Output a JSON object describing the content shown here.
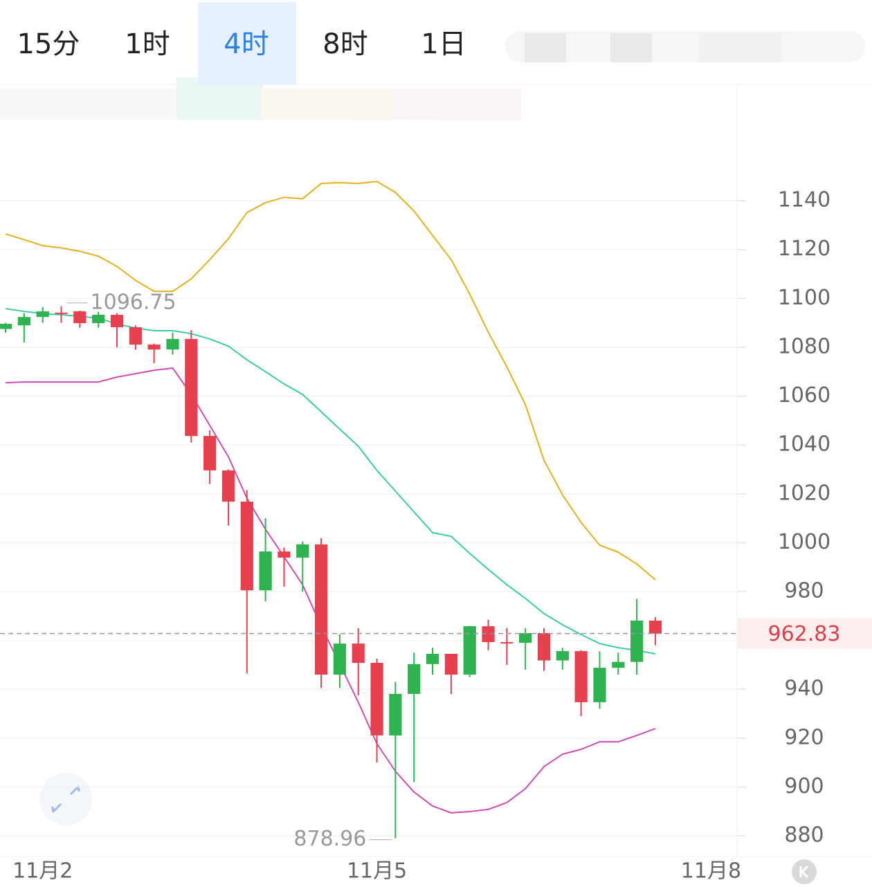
{
  "tabs": [
    "15分",
    "1时",
    "4时",
    "8时",
    "1日"
  ],
  "active_tab": "4时",
  "chart_data": {
    "type": "candlestick",
    "open": [
      1087.5,
      1089,
      1092.4,
      1094.2,
      1094.7,
      1089.9,
      1093.3,
      1088.2,
      1081.1,
      1079.1,
      1083.4,
      1043.7,
      1029.6,
      1016.8,
      980.5,
      996.4,
      993.9,
      999.3,
      946,
      958.7,
      950.8,
      921.1,
      938.1,
      950.3,
      954.5,
      946,
      965.8,
      959.3,
      959,
      963,
      951.8,
      955.6,
      934.7,
      948.8,
      951.2,
      968.1
    ],
    "high": [
      1090,
      1094,
      1096.5,
      1096.75,
      1095,
      1094.5,
      1094,
      1089,
      1081.5,
      1086,
      1087,
      1046,
      1030,
      1021.5,
      1010,
      998,
      1000.5,
      1001.8,
      962.5,
      965,
      952.5,
      943,
      955,
      957,
      954.5,
      966,
      968.5,
      965,
      965,
      965,
      957,
      956,
      955.5,
      955,
      977,
      969.5
    ],
    "low": [
      1086,
      1082,
      1090,
      1090,
      1088,
      1088,
      1080,
      1079,
      1073.5,
      1077,
      1041,
      1024,
      1007,
      946.5,
      976,
      982,
      980,
      940.5,
      940.5,
      937.5,
      910,
      878.96,
      902,
      946,
      938,
      945,
      956,
      950,
      948,
      947.5,
      948,
      929,
      932,
      946,
      946,
      958
    ],
    "close": [
      1089.6,
      1092.4,
      1094.7,
      1093.8,
      1089.9,
      1093.3,
      1088.2,
      1081.1,
      1079.1,
      1083.4,
      1043.7,
      1029.6,
      1016.8,
      980.5,
      996.4,
      993.9,
      999.3,
      946,
      958.7,
      950.8,
      921.1,
      938.1,
      950.3,
      954.5,
      946,
      965.8,
      959.3,
      959,
      963,
      951.8,
      955.6,
      934.7,
      948.8,
      951.2,
      968.1,
      962.83
    ],
    "up_color": "#2eb350",
    "down_color": "#e7404e",
    "bands": [
      {
        "color": "#e5b120",
        "values": [
          1126.4,
          1124.1,
          1121.6,
          1120.7,
          1119.3,
          1117.3,
          1113.1,
          1107.4,
          1102.9,
          1102.9,
          1108,
          1115.9,
          1124.4,
          1135.2,
          1139.2,
          1141.4,
          1140.8,
          1147.1,
          1147.4,
          1147.1,
          1147.9,
          1143.4,
          1135.8,
          1125.8,
          1115.9,
          1101.8,
          1086.2,
          1072,
          1056.5,
          1033.8,
          1019.6,
          1008.3,
          999,
          996.1,
          991.3,
          984.8
        ]
      },
      {
        "color": "#3ccca6",
        "values": [
          1095.8,
          1094.7,
          1093.8,
          1093.3,
          1092.7,
          1091.9,
          1089.6,
          1087.9,
          1086.8,
          1086.8,
          1085.6,
          1083.4,
          1080.5,
          1074.9,
          1070,
          1065,
          1060.7,
          1053.6,
          1046.5,
          1039.5,
          1029.6,
          1021.1,
          1012.6,
          1004.1,
          1002.6,
          995.6,
          989.1,
          982.8,
          977.2,
          971,
          966.4,
          962.4,
          958.7,
          957,
          955.9,
          954.5
        ]
      },
      {
        "color": "#d14cb3",
        "values": [
          1065.5,
          1065.8,
          1065.8,
          1065.8,
          1065.8,
          1065.8,
          1067.8,
          1069.2,
          1070.6,
          1071.5,
          1060.7,
          1048,
          1035.2,
          1018.2,
          1005.5,
          994.2,
          982.8,
          965.8,
          950.3,
          934.7,
          917.7,
          906.4,
          897.9,
          892.2,
          889.4,
          889.9,
          890.8,
          893.6,
          899.3,
          908.3,
          913.4,
          915.4,
          918.5,
          918.5,
          921.1,
          923.9
        ]
      }
    ],
    "ylim": [
      871.5,
      1171.2
    ],
    "yticks": [
      880,
      900,
      920,
      940,
      960,
      980,
      1000,
      1020,
      1040,
      1060,
      1080,
      1100,
      1120,
      1140
    ],
    "xlim": [
      -0.3,
      39.4
    ],
    "xticks": [
      {
        "value": 2,
        "label": "11月2"
      },
      {
        "value": 20,
        "label": "11月5"
      },
      {
        "value": 38,
        "label": "11月8"
      }
    ],
    "grid": true
  }
}
